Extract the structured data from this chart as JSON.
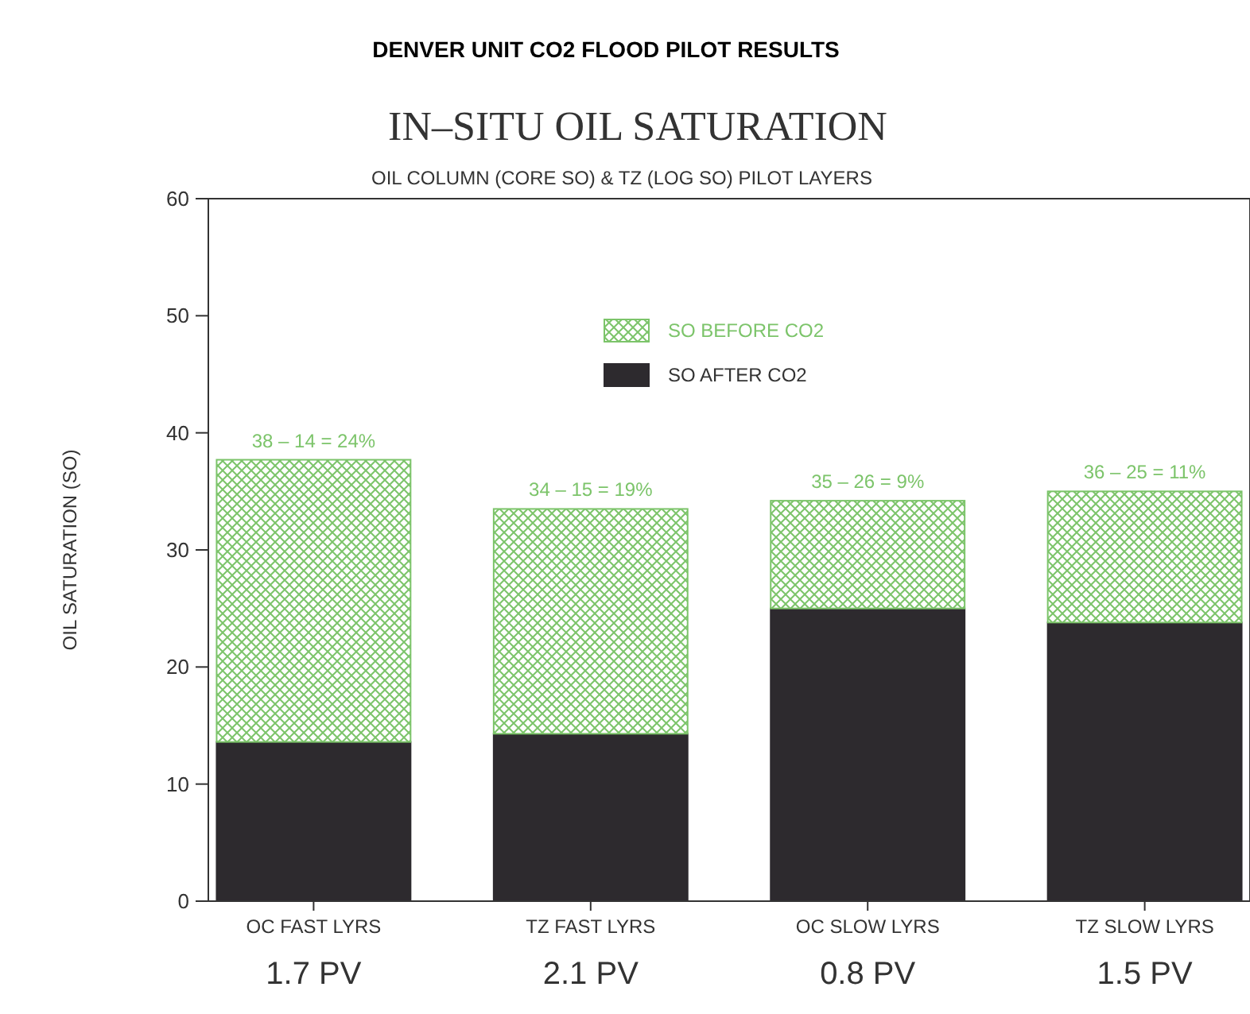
{
  "chart_data": {
    "type": "bar",
    "title": "DENVER UNIT CO2 FLOOD PILOT RESULTS",
    "subtitle": "IN–SITU OIL SATURATION",
    "annotations": [
      "OIL COLUMN (CORE SO) & TZ (LOG SO) PILOT LAYERS"
    ],
    "ylabel": "OIL SATURATION (SO)",
    "categories": [
      "OC FAST LYRS\n1.7 PV",
      "TZ FAST LYRS\n2.1 PV",
      "OC SLOW LYRS\n0.8 PV",
      "TZ SLOW LYRS\n1.5 PV"
    ],
    "stacked": true,
    "series": [
      {
        "name": "SO AFTER CO2",
        "color": "#2d2a2e",
        "values": [
          13.6,
          14.3,
          25,
          23.8
        ]
      },
      {
        "name": "SO BEFORE CO2",
        "color": "#7cc46a",
        "values": [
          24.1,
          19.2,
          9.2,
          11.2
        ]
      }
    ],
    "totals": [
      "38 – 14 = 24%",
      "34 – 15 = 19%",
      "35 – 26 = 9%",
      "36 – 25 = 11%"
    ],
    "ylim": [
      0,
      60
    ],
    "yticks": [
      0,
      10,
      20,
      30,
      40,
      50,
      60
    ],
    "legend": "top",
    "grid": false
  }
}
